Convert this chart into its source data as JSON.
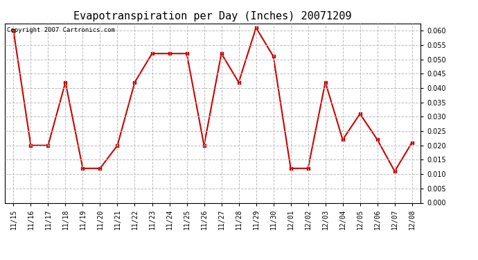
{
  "title": "Evapotranspiration per Day (Inches) 20071209",
  "copyright_text": "Copyright 2007 Cartronics.com",
  "labels": [
    "11/15",
    "11/16",
    "11/17",
    "11/18",
    "11/19",
    "11/20",
    "11/21",
    "11/22",
    "11/23",
    "11/24",
    "11/25",
    "11/26",
    "11/27",
    "11/28",
    "11/29",
    "11/30",
    "12/01",
    "12/02",
    "12/03",
    "12/04",
    "12/05",
    "12/06",
    "12/07",
    "12/08"
  ],
  "values": [
    0.06,
    0.02,
    0.02,
    0.042,
    0.012,
    0.012,
    0.02,
    0.042,
    0.052,
    0.052,
    0.052,
    0.02,
    0.052,
    0.042,
    0.061,
    0.051,
    0.012,
    0.012,
    0.042,
    0.022,
    0.031,
    0.022,
    0.011,
    0.021
  ],
  "line_color": "#cc0000",
  "marker": "s",
  "marker_size": 3,
  "line_width": 1.5,
  "ylim": [
    0.0,
    0.0625
  ],
  "yticks": [
    0.0,
    0.005,
    0.01,
    0.015,
    0.02,
    0.025,
    0.03,
    0.035,
    0.04,
    0.045,
    0.05,
    0.055,
    0.06
  ],
  "background_color": "#ffffff",
  "grid_color": "#bbbbbb",
  "title_fontsize": 11,
  "tick_fontsize": 7,
  "copyright_fontsize": 6.5
}
